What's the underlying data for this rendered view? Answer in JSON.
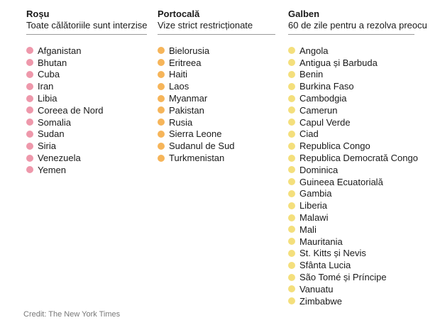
{
  "colors": {
    "red": "#ee98ab",
    "orange": "#f6b55a",
    "yellow": "#f4df7c"
  },
  "columns": {
    "red": {
      "title": "Roșu",
      "subtitle": "Toate călătoriile sunt interzise",
      "items": [
        "Afganistan",
        "Bhutan",
        "Cuba",
        "Iran",
        "Libia",
        "Coreea de Nord",
        "Somalia",
        "Sudan",
        "Siria",
        "Venezuela",
        "Yemen"
      ]
    },
    "orange": {
      "title": "Portocală",
      "subtitle": "Vize strict restricționate",
      "items": [
        "Bielorusia",
        "Eritreea",
        "Haiti",
        "Laos",
        "Myanmar",
        "Pakistan",
        "Rusia",
        "Sierra Leone",
        "Sudanul de Sud",
        "Turkmenistan"
      ]
    },
    "yellow": {
      "title": "Galben",
      "subtitle": "60 de zile pentru a rezolva preocu",
      "items": [
        "Angola",
        "Antigua și Barbuda",
        "Benin",
        "Burkina Faso",
        "Cambodgia",
        "Camerun",
        "Capul Verde",
        "Ciad",
        "Republica Congo",
        "Republica Democrată Congo",
        "Dominica",
        "Guineea Ecuatorială",
        "Gambia",
        "Liberia",
        "Malawi",
        "Mali",
        "Mauritania",
        "St. Kitts și Nevis",
        "Sfânta Lucia",
        "São Tomé și Príncipe",
        "Vanuatu",
        "Zimbabwe"
      ]
    }
  },
  "credit": "Credit: The New York Times"
}
